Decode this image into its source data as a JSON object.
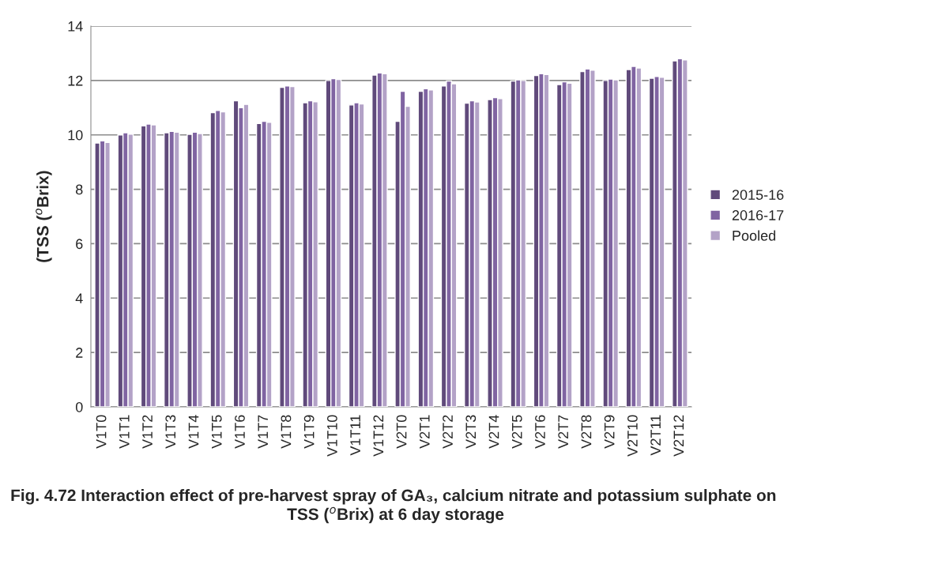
{
  "chart_data": {
    "type": "bar",
    "title": "Fig. 4.72 Interaction effect of pre-harvest spray of GA₃, calcium nitrate and potassium sulphate on  TSS ($^{o}$Brix) at 6 day storage",
    "ylabel": "(TSS ($^{o}$Brix)",
    "categories": [
      "V1T0",
      "V1T1",
      "V1T2",
      "V1T3",
      "V1T4",
      "V1T5",
      "V1T6",
      "V1T7",
      "V1T8",
      "V1T9",
      "V1T10",
      "V1T11",
      "V1T12",
      "V2T0",
      "V2T1",
      "V2T2",
      "V2T3",
      "V2T4",
      "V2T5",
      "V2T6",
      "V2T7",
      "V2T8",
      "V2T9",
      "V2T10",
      "V2T11",
      "V2T12"
    ],
    "series": [
      {
        "name": "2015-16",
        "color": "#604a7b",
        "values": [
          9.7,
          10.0,
          10.33,
          10.08,
          10.02,
          10.82,
          11.25,
          10.42,
          11.75,
          11.18,
          12.0,
          11.1,
          12.2,
          10.5,
          11.6,
          11.8,
          11.17,
          11.3,
          11.98,
          12.18,
          11.85,
          12.33,
          12.0,
          12.4,
          12.08,
          12.72
        ]
      },
      {
        "name": "2016-17",
        "color": "#8064a2",
        "values": [
          9.78,
          10.08,
          10.4,
          10.13,
          10.1,
          10.9,
          11.0,
          10.5,
          11.8,
          11.25,
          12.07,
          11.18,
          12.28,
          11.6,
          11.7,
          11.98,
          11.25,
          11.37,
          12.02,
          12.25,
          11.95,
          12.42,
          12.05,
          12.52,
          12.15,
          12.8
        ]
      },
      {
        "name": "Pooled",
        "color": "#b3a2c7",
        "values": [
          9.72,
          10.03,
          10.37,
          10.1,
          10.05,
          10.85,
          11.12,
          10.46,
          11.78,
          11.22,
          12.04,
          11.14,
          12.25,
          11.05,
          11.65,
          11.88,
          11.21,
          11.33,
          12.0,
          12.22,
          11.9,
          12.38,
          12.02,
          12.46,
          12.12,
          12.76
        ]
      }
    ],
    "ylim": [
      0,
      14
    ],
    "yticks": [
      0,
      2,
      4,
      6,
      8,
      10,
      12,
      14
    ],
    "grid": "y",
    "legend": "right"
  }
}
